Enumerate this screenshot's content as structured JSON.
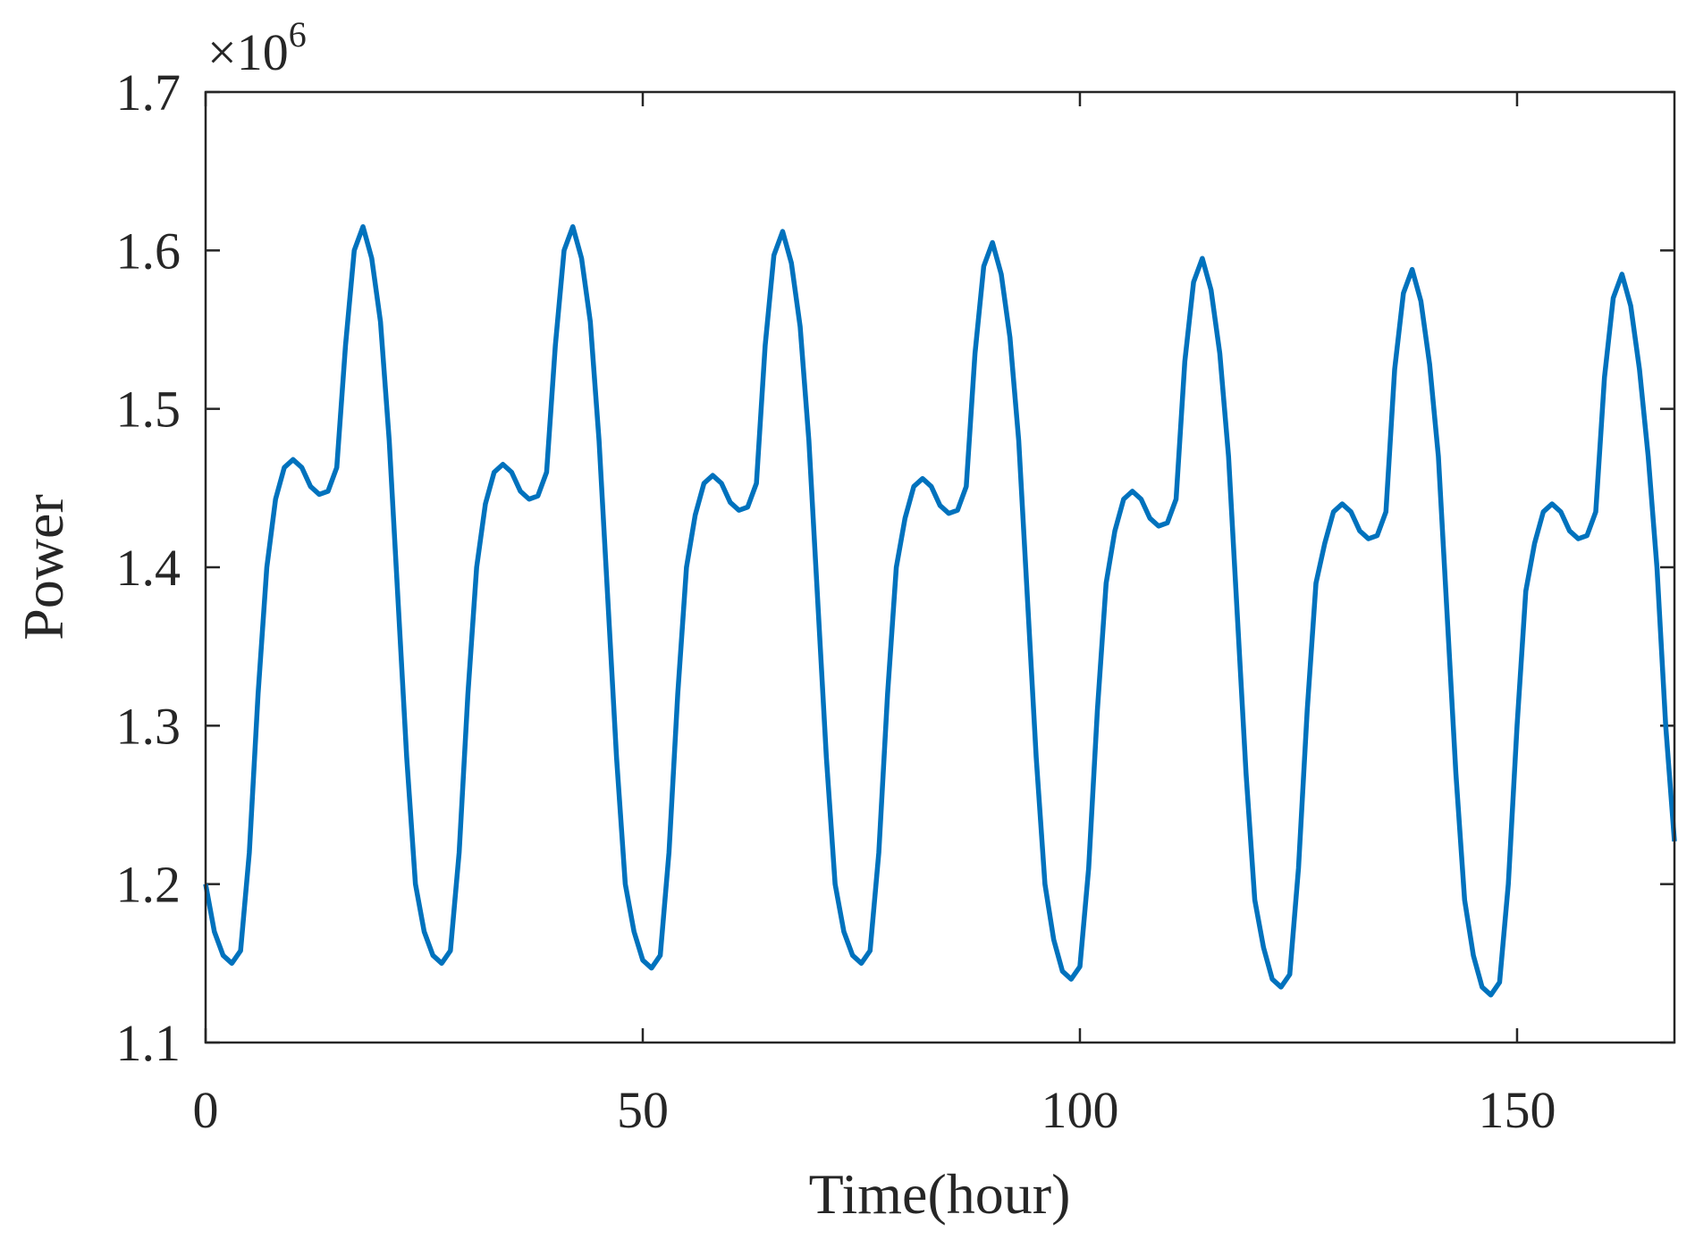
{
  "chart_data": {
    "type": "line",
    "x_label": "Time(hour)",
    "y_label": "Power",
    "y_offset_text": "×10",
    "y_offset_exponent": "6",
    "xlim": [
      0,
      168
    ],
    "xticks": [
      0,
      50,
      100,
      150
    ],
    "ylim": [
      1.1,
      1.7
    ],
    "yticks": [
      1.1,
      1.2,
      1.3,
      1.4,
      1.5,
      1.6,
      1.7
    ],
    "grid": false,
    "x": [
      0,
      1,
      2,
      3,
      4,
      5,
      6,
      7,
      8,
      9,
      10,
      11,
      12,
      13,
      14,
      15,
      16,
      17,
      18,
      19,
      20,
      21,
      22,
      23,
      24,
      25,
      26,
      27,
      28,
      29,
      30,
      31,
      32,
      33,
      34,
      35,
      36,
      37,
      38,
      39,
      40,
      41,
      42,
      43,
      44,
      45,
      46,
      47,
      48,
      49,
      50,
      51,
      52,
      53,
      54,
      55,
      56,
      57,
      58,
      59,
      60,
      61,
      62,
      63,
      64,
      65,
      66,
      67,
      68,
      69,
      70,
      71,
      72,
      73,
      74,
      75,
      76,
      77,
      78,
      79,
      80,
      81,
      82,
      83,
      84,
      85,
      86,
      87,
      88,
      89,
      90,
      91,
      92,
      93,
      94,
      95,
      96,
      97,
      98,
      99,
      100,
      101,
      102,
      103,
      104,
      105,
      106,
      107,
      108,
      109,
      110,
      111,
      112,
      113,
      114,
      115,
      116,
      117,
      118,
      119,
      120,
      121,
      122,
      123,
      124,
      125,
      126,
      127,
      128,
      129,
      130,
      131,
      132,
      133,
      134,
      135,
      136,
      137,
      138,
      139,
      140,
      141,
      142,
      143,
      144,
      145,
      146,
      147,
      148,
      149,
      150,
      151,
      152,
      153,
      154,
      155,
      156,
      157,
      158,
      159,
      160,
      161,
      162,
      163,
      164,
      165,
      166,
      167,
      168
    ],
    "series": [
      {
        "name": "Power",
        "color": "#0072bd",
        "values": [
          1.2,
          1.17,
          1.155,
          1.15,
          1.158,
          1.22,
          1.32,
          1.4,
          1.443,
          1.463,
          1.468,
          1.463,
          1.451,
          1.446,
          1.448,
          1.463,
          1.54,
          1.6,
          1.615,
          1.595,
          1.555,
          1.48,
          1.38,
          1.28,
          1.2,
          1.17,
          1.155,
          1.15,
          1.158,
          1.22,
          1.32,
          1.4,
          1.44,
          1.46,
          1.465,
          1.46,
          1.448,
          1.443,
          1.445,
          1.46,
          1.54,
          1.6,
          1.615,
          1.595,
          1.555,
          1.48,
          1.38,
          1.28,
          1.2,
          1.17,
          1.152,
          1.147,
          1.155,
          1.22,
          1.32,
          1.4,
          1.433,
          1.453,
          1.458,
          1.453,
          1.441,
          1.436,
          1.438,
          1.453,
          1.54,
          1.597,
          1.612,
          1.592,
          1.552,
          1.48,
          1.38,
          1.28,
          1.2,
          1.17,
          1.155,
          1.15,
          1.158,
          1.22,
          1.32,
          1.4,
          1.431,
          1.451,
          1.456,
          1.451,
          1.439,
          1.434,
          1.436,
          1.451,
          1.535,
          1.59,
          1.605,
          1.585,
          1.545,
          1.48,
          1.38,
          1.28,
          1.2,
          1.165,
          1.145,
          1.14,
          1.148,
          1.21,
          1.31,
          1.39,
          1.423,
          1.443,
          1.448,
          1.443,
          1.431,
          1.426,
          1.428,
          1.443,
          1.53,
          1.58,
          1.595,
          1.575,
          1.535,
          1.47,
          1.37,
          1.27,
          1.19,
          1.16,
          1.14,
          1.135,
          1.143,
          1.21,
          1.31,
          1.39,
          1.415,
          1.435,
          1.44,
          1.435,
          1.423,
          1.418,
          1.42,
          1.435,
          1.525,
          1.573,
          1.588,
          1.568,
          1.528,
          1.47,
          1.37,
          1.27,
          1.19,
          1.155,
          1.135,
          1.13,
          1.138,
          1.2,
          1.3,
          1.385,
          1.415,
          1.435,
          1.44,
          1.435,
          1.423,
          1.418,
          1.42,
          1.435,
          1.52,
          1.57,
          1.585,
          1.565,
          1.525,
          1.47,
          1.4,
          1.3,
          1.227
        ]
      }
    ]
  }
}
